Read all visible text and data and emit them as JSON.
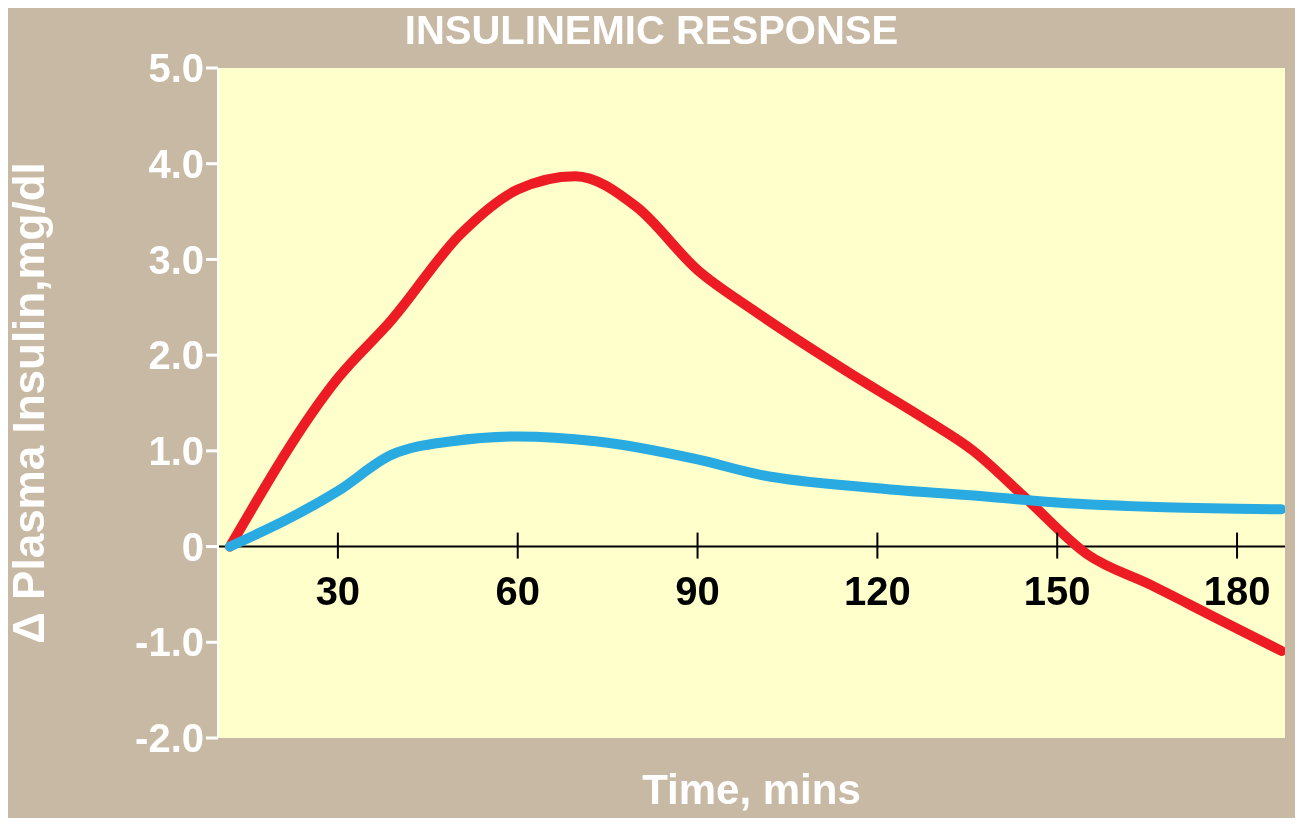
{
  "chart_data": {
    "type": "line",
    "title": "INSULINEMIC RESPONSE",
    "xlabel": "Time, mins",
    "ylabel": "Δ Plasma Insulin,mg/dl",
    "xlim": [
      10,
      188
    ],
    "xticks": [
      30,
      60,
      90,
      120,
      150,
      180
    ],
    "ylim": [
      -2,
      5
    ],
    "yticks": [
      {
        "value": -2,
        "label": "-2.0"
      },
      {
        "value": -1,
        "label": "-1.0"
      },
      0,
      {
        "value": 1,
        "label": "1.0"
      },
      {
        "value": 2,
        "label": "2.0"
      },
      {
        "value": 3,
        "label": "3.0"
      },
      {
        "value": 4,
        "label": "4.0"
      },
      {
        "value": 5,
        "label": "5.0"
      }
    ],
    "grid": false,
    "marker": "none",
    "line_style": "solid",
    "series": [
      {
        "color": "#ed1c24",
        "x": [
          12,
          30,
          39,
          50.4,
          60,
          69.6,
          79.8,
          90,
          99.3,
          115.7,
          128,
          136,
          145,
          155,
          165.6,
          176,
          187.4
        ],
        "values": [
          0,
          1.76,
          2.37,
          3.26,
          3.73,
          3.87,
          3.55,
          2.89,
          2.47,
          1.8,
          1.33,
          1.0,
          0.49,
          -0.08,
          -0.4,
          -0.73,
          -1.09
        ]
      },
      {
        "color": "#29abe2",
        "x": [
          12,
          30,
          39,
          49,
          60,
          73,
          90,
          100.5,
          120,
          138.5,
          150,
          167.9,
          187.4
        ],
        "values": [
          0,
          0.58,
          0.96,
          1.1,
          1.15,
          1.1,
          0.91,
          0.75,
          0.61,
          0.52,
          0.46,
          0.41,
          0.39
        ]
      }
    ]
  }
}
